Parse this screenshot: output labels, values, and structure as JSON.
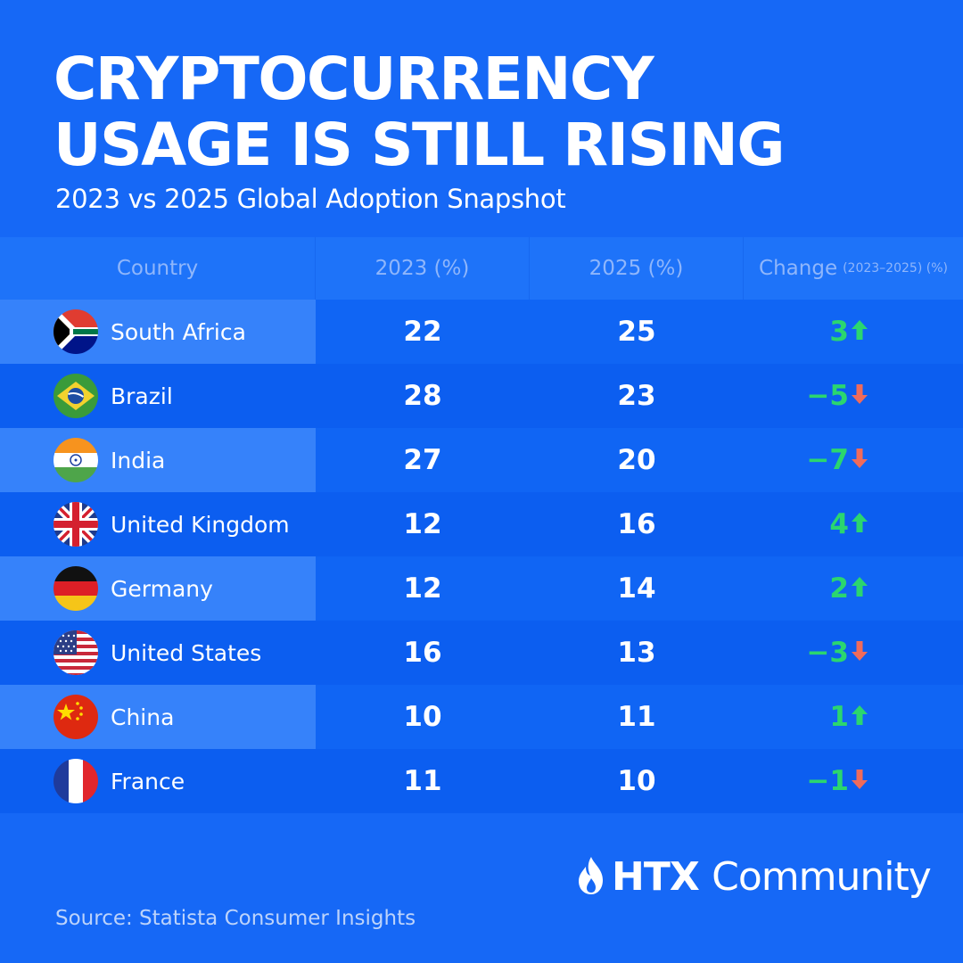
{
  "title": {
    "line1": "CRYPTOCURRENCY",
    "line2": "USAGE IS STILL RISING"
  },
  "subtitle": "2023 vs 2025 Global Adoption Snapshot",
  "columns": {
    "country": "Country",
    "y2023": "2023 (%)",
    "y2025": "2025 (%)",
    "change": "Change",
    "change_note": "(2023–2025) (%)"
  },
  "colors": {
    "up": "#2bd66f",
    "down": "#ef6b5b",
    "background": "#1668f6"
  },
  "chart_data": {
    "type": "table",
    "title": "CRYPTOCURRENCY USAGE IS STILL RISING",
    "subtitle": "2023 vs 2025 Global Adoption Snapshot",
    "columns": [
      "Country",
      "2023 (%)",
      "2025 (%)",
      "Change (2023–2025) (%)"
    ],
    "rows": [
      {
        "country": "South Africa",
        "flag": "south-africa-flag-icon",
        "y2023": 22,
        "y2025": 25,
        "change": "3",
        "dir": "up"
      },
      {
        "country": "Brazil",
        "flag": "brazil-flag-icon",
        "y2023": 28,
        "y2025": 23,
        "change": "−5",
        "dir": "down"
      },
      {
        "country": "India",
        "flag": "india-flag-icon",
        "y2023": 27,
        "y2025": 20,
        "change": "−7",
        "dir": "down"
      },
      {
        "country": "United Kingdom",
        "flag": "uk-flag-icon",
        "y2023": 12,
        "y2025": 16,
        "change": "4",
        "dir": "up"
      },
      {
        "country": "Germany",
        "flag": "germany-flag-icon",
        "y2023": 12,
        "y2025": 14,
        "change": "2",
        "dir": "up"
      },
      {
        "country": "United States",
        "flag": "us-flag-icon",
        "y2023": 16,
        "y2025": 13,
        "change": "−3",
        "dir": "down"
      },
      {
        "country": "China",
        "flag": "china-flag-icon",
        "y2023": 10,
        "y2025": 11,
        "change": "1",
        "dir": "up"
      },
      {
        "country": "France",
        "flag": "france-flag-icon",
        "y2023": 11,
        "y2025": 10,
        "change": "−1",
        "dir": "down"
      }
    ]
  },
  "logo": {
    "icon": "flame-logo-icon",
    "brand_bold": "HTX",
    "brand_rest": "Community"
  },
  "source": "Source: Statista Consumer Insights"
}
